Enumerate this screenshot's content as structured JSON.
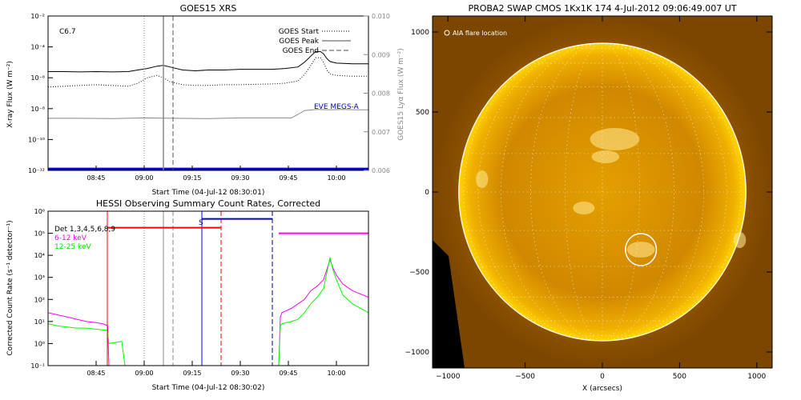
{
  "chart_data": [
    {
      "type": "line",
      "title": "GOES15 XRS",
      "xlabel": "Start Time (04-Jul-12 08:30:01)",
      "ylabel": "X-ray Flux (W m⁻²)",
      "ylabel_right": "GOES15 Lyα Flux (W m⁻²)",
      "flare_class": "C6.7",
      "log_y": true,
      "ylim_exp": [
        -12,
        -2
      ],
      "y_ticks": [
        "10⁻¹²",
        "10⁻¹⁰",
        "10⁻⁸",
        "10⁻⁶",
        "10⁻⁴",
        "10⁻²"
      ],
      "y_tick_exp": [
        -12,
        -10,
        -8,
        -6,
        -4,
        -2
      ],
      "ylim_right": [
        0.006,
        0.01
      ],
      "y_ticks_right": [
        "0.006",
        "0.007",
        "0.008",
        "0.009",
        "0.010"
      ],
      "y_tick_right_values": [
        0.006,
        0.007,
        0.008,
        0.009,
        0.01
      ],
      "x_range_min": [
        0,
        100
      ],
      "x_ticks": [
        "08:45",
        "09:00",
        "09:15",
        "09:30",
        "09:45",
        "10:00"
      ],
      "x_tick_min": [
        15,
        30,
        45,
        60,
        75,
        90
      ],
      "legend": [
        {
          "label": "GOES Start",
          "style": "dotted"
        },
        {
          "label": "GOES Peak",
          "style": "solid"
        },
        {
          "label": "GOES End",
          "style": "dashed"
        }
      ],
      "annotation": "EVE MEGS-A",
      "vlines_min": {
        "start": 30,
        "peak": 36,
        "end": 39
      },
      "series": [
        {
          "key": "long",
          "color": "#000000",
          "style": "solid",
          "x": [
            0,
            5,
            10,
            15,
            20,
            25,
            28,
            31,
            34,
            36,
            38,
            42,
            46,
            50,
            55,
            60,
            65,
            70,
            74,
            78,
            80,
            82,
            83.5,
            85,
            86,
            87,
            88,
            90,
            95,
            100
          ],
          "y": [
            -5.6,
            -5.6,
            -5.62,
            -5.6,
            -5.62,
            -5.6,
            -5.5,
            -5.4,
            -5.25,
            -5.2,
            -5.3,
            -5.5,
            -5.55,
            -5.5,
            -5.5,
            -5.45,
            -5.45,
            -5.45,
            -5.4,
            -5.3,
            -5.0,
            -4.6,
            -4.3,
            -4.3,
            -4.45,
            -4.75,
            -4.95,
            -5.05,
            -5.1,
            -5.1
          ]
        },
        {
          "key": "short",
          "color": "#000000",
          "style": "dotted",
          "x": [
            0,
            5,
            10,
            15,
            20,
            25,
            28,
            31,
            34,
            36,
            38,
            42,
            46,
            50,
            55,
            60,
            65,
            70,
            74,
            78,
            80,
            82,
            83.5,
            85,
            86,
            87,
            88,
            90,
            95,
            100
          ],
          "y": [
            -6.6,
            -6.55,
            -6.5,
            -6.45,
            -6.5,
            -6.55,
            -6.35,
            -6.0,
            -5.85,
            -6.0,
            -6.25,
            -6.45,
            -6.5,
            -6.5,
            -6.45,
            -6.45,
            -6.42,
            -6.4,
            -6.35,
            -6.2,
            -5.8,
            -5.2,
            -4.7,
            -4.7,
            -5.0,
            -5.5,
            -5.75,
            -5.85,
            -5.9,
            -5.9
          ]
        },
        {
          "key": "lya",
          "color": "#888888",
          "style": "solid",
          "axis": "right",
          "x": [
            0,
            10,
            20,
            30,
            40,
            50,
            60,
            70,
            76,
            78,
            80,
            84,
            88,
            92,
            96,
            100
          ],
          "y": [
            0.00735,
            0.00735,
            0.00734,
            0.00736,
            0.00735,
            0.00734,
            0.00736,
            0.00736,
            0.00736,
            0.00745,
            0.00755,
            0.00758,
            0.00757,
            0.00758,
            0.00757,
            0.00757
          ]
        },
        {
          "key": "eve",
          "color": "#0000dd",
          "style": "solid",
          "x": [
            0,
            100
          ],
          "y": [
            -11.9,
            -11.9
          ]
        }
      ]
    },
    {
      "type": "line",
      "title": "HESSI Observing Summary Count Rates, Corrected",
      "xlabel": "Start Time (04-Jul-12 08:30:02)",
      "ylabel": "Corrected Count Rate (s⁻¹ detector⁻¹)",
      "log_y": true,
      "ylim_exp": [
        -1,
        6
      ],
      "y_ticks": [
        "10⁻¹",
        "10⁰",
        "10¹",
        "10²",
        "10³",
        "10⁴",
        "10⁵",
        "10⁶"
      ],
      "y_tick_exp": [
        -1,
        0,
        1,
        2,
        3,
        4,
        5,
        6
      ],
      "x_range_min": [
        0,
        100
      ],
      "x_ticks": [
        "08:45",
        "09:00",
        "09:15",
        "09:30",
        "09:45",
        "10:00"
      ],
      "x_tick_min": [
        15,
        30,
        45,
        60,
        75,
        90
      ],
      "legend": [
        {
          "label": "Det 1,3,4,5,6,8,9",
          "color": "#000000"
        },
        {
          "label": "6-12 keV",
          "color": "#ff00ff"
        },
        {
          "label": "12-25 keV",
          "color": "#00ff00"
        }
      ],
      "s_label": "S",
      "vlines_min": [
        {
          "x": 18.5,
          "color": "#ff0000",
          "style": "solid"
        },
        {
          "x": 30,
          "color": "#888888",
          "style": "dotted"
        },
        {
          "x": 36,
          "color": "#888888",
          "style": "solid"
        },
        {
          "x": 39,
          "color": "#888888",
          "style": "dashed"
        },
        {
          "x": 48,
          "color": "#0000ff",
          "style": "solid"
        },
        {
          "x": 54,
          "color": "#ff0000",
          "style": "dashed"
        },
        {
          "x": 70,
          "color": "#000080",
          "style": "dashed"
        }
      ],
      "hbars": [
        {
          "x": [
            18.5,
            54
          ],
          "y": 5.25,
          "color": "#ff0000"
        },
        {
          "x": [
            48,
            70
          ],
          "y": 5.65,
          "color": "#0000cc"
        },
        {
          "x": [
            72,
            100
          ],
          "y": 5.0,
          "color": "#ff00ff"
        }
      ],
      "series": [
        {
          "key": "lo",
          "color": "#ff00ff",
          "x": [
            0,
            3,
            6,
            9,
            12,
            15,
            17,
            18,
            18.6,
            19,
            72,
            72.5,
            73,
            76,
            78,
            80,
            82,
            84,
            86,
            88,
            89,
            90,
            92,
            95,
            100
          ],
          "y": [
            1.4,
            1.3,
            1.2,
            1.1,
            1.0,
            0.95,
            0.9,
            0.85,
            0.8,
            -1,
            -1,
            1.2,
            1.4,
            1.6,
            1.8,
            2.0,
            2.4,
            2.6,
            2.9,
            3.8,
            3.4,
            3.1,
            2.7,
            2.4,
            2.1
          ]
        },
        {
          "key": "hi",
          "color": "#00ff00",
          "x": [
            0,
            3,
            6,
            9,
            12,
            15,
            18.5,
            19,
            23,
            24,
            72,
            72.5,
            73,
            76,
            78,
            80,
            82,
            84,
            86,
            88,
            89,
            90,
            92,
            95,
            100
          ],
          "y": [
            0.9,
            0.8,
            0.75,
            0.7,
            0.7,
            0.65,
            0.6,
            0,
            0.1,
            -1,
            -1,
            0.8,
            0.9,
            1.0,
            1.1,
            1.4,
            1.8,
            2.1,
            2.5,
            3.9,
            3.3,
            2.9,
            2.2,
            1.8,
            1.4
          ]
        }
      ]
    },
    {
      "type": "image",
      "title": "PROBA2 SWAP CMOS 1Kx1K 174   4-Jul-2012 09:06:49.007 UT",
      "xlabel": "X (arcsecs)",
      "xlim": [
        -1100,
        1100
      ],
      "ylim": [
        -1100,
        1100
      ],
      "x_tick_values": [
        -1000,
        -500,
        0,
        500,
        1000
      ],
      "y_tick_values": [
        -1000,
        -500,
        0,
        500,
        1000
      ],
      "x_ticks": [
        "−1000",
        "−500",
        "0",
        "500",
        "1000"
      ],
      "y_ticks": [
        "−1000",
        "−500",
        "0",
        "500",
        "1000"
      ],
      "solar_radius_arcsec": 930,
      "legend_label": "AIA flare location",
      "flare_location_arcsec": [
        250,
        -360
      ],
      "flare_circle_radius_arcsec": 100
    }
  ]
}
